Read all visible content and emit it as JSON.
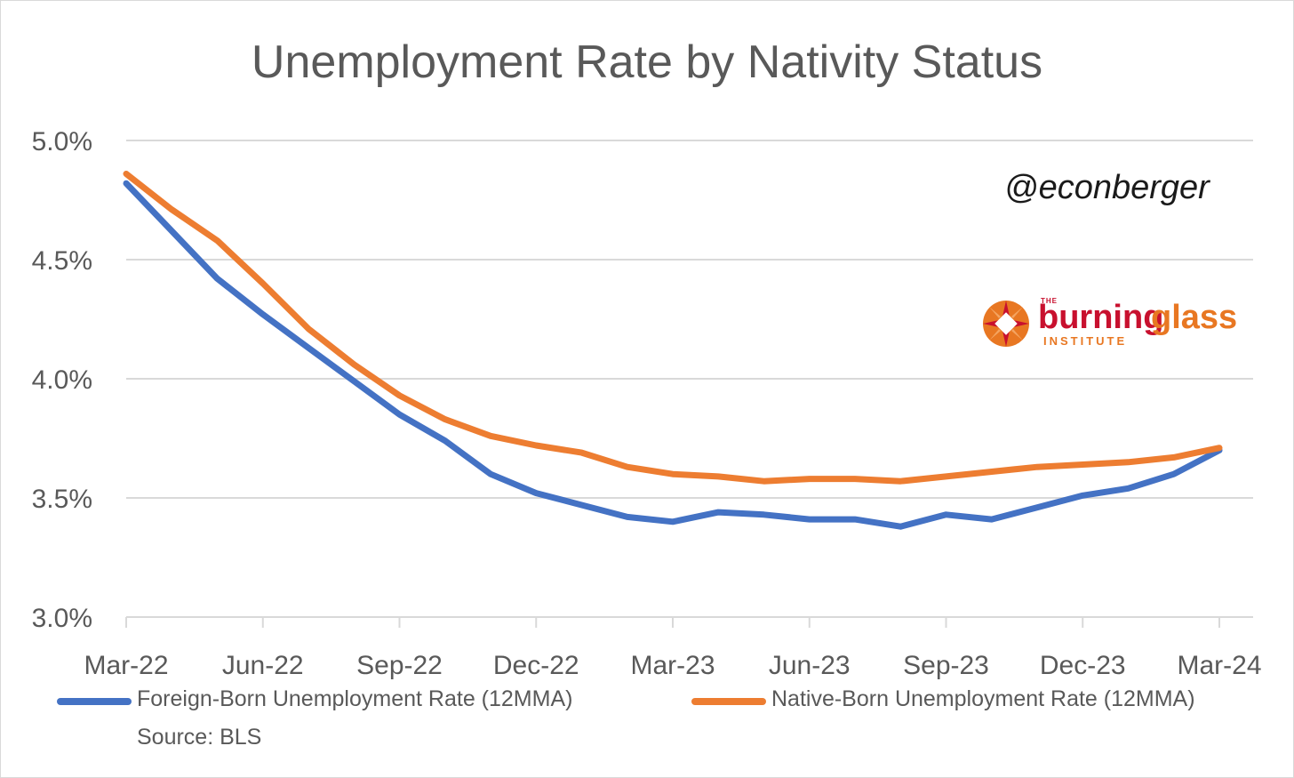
{
  "chart_data": {
    "type": "line",
    "title": "Unemployment Rate by Nativity Status",
    "x": [
      "Mar-22",
      "Apr-22",
      "May-22",
      "Jun-22",
      "Jul-22",
      "Aug-22",
      "Sep-22",
      "Oct-22",
      "Nov-22",
      "Dec-22",
      "Jan-23",
      "Feb-23",
      "Mar-23",
      "Apr-23",
      "May-23",
      "Jun-23",
      "Jul-23",
      "Aug-23",
      "Sep-23",
      "Oct-23",
      "Nov-23",
      "Dec-23",
      "Jan-24",
      "Feb-24",
      "Mar-24"
    ],
    "x_tick_labels": [
      "Mar-22",
      "Jun-22",
      "Sep-22",
      "Dec-22",
      "Mar-23",
      "Jun-23",
      "Sep-23",
      "Dec-23",
      "Mar-24"
    ],
    "y_tick_labels": [
      "3.0%",
      "3.5%",
      "4.0%",
      "4.5%",
      "5.0%"
    ],
    "ylim": [
      3.0,
      5.0
    ],
    "y_unit": "%",
    "grid": true,
    "legend_position": "bottom",
    "series": [
      {
        "name": "Foreign-Born Unemployment Rate (12MMA)",
        "color": "#4472c4",
        "values": [
          4.82,
          4.62,
          4.42,
          4.27,
          4.13,
          3.99,
          3.85,
          3.74,
          3.6,
          3.52,
          3.47,
          3.42,
          3.4,
          3.44,
          3.43,
          3.41,
          3.41,
          3.38,
          3.43,
          3.41,
          3.46,
          3.51,
          3.54,
          3.6,
          3.7
        ]
      },
      {
        "name": "Native-Born Unemployment Rate (12MMA)",
        "color": "#ed7d31",
        "values": [
          4.86,
          4.71,
          4.58,
          4.4,
          4.21,
          4.06,
          3.93,
          3.83,
          3.76,
          3.72,
          3.69,
          3.63,
          3.6,
          3.59,
          3.57,
          3.58,
          3.58,
          3.57,
          3.59,
          3.61,
          3.63,
          3.64,
          3.65,
          3.67,
          3.71
        ]
      }
    ]
  },
  "annotations": {
    "handle": "@econberger",
    "logo_the": "THE",
    "logo_word1": "burning",
    "logo_word2": "glass",
    "logo_sub": "INSTITUTE",
    "source": "Source: BLS"
  },
  "colors": {
    "grid": "#d9d9d9",
    "text": "#595959",
    "logo_red": "#c8102e",
    "logo_orange": "#e87722"
  }
}
